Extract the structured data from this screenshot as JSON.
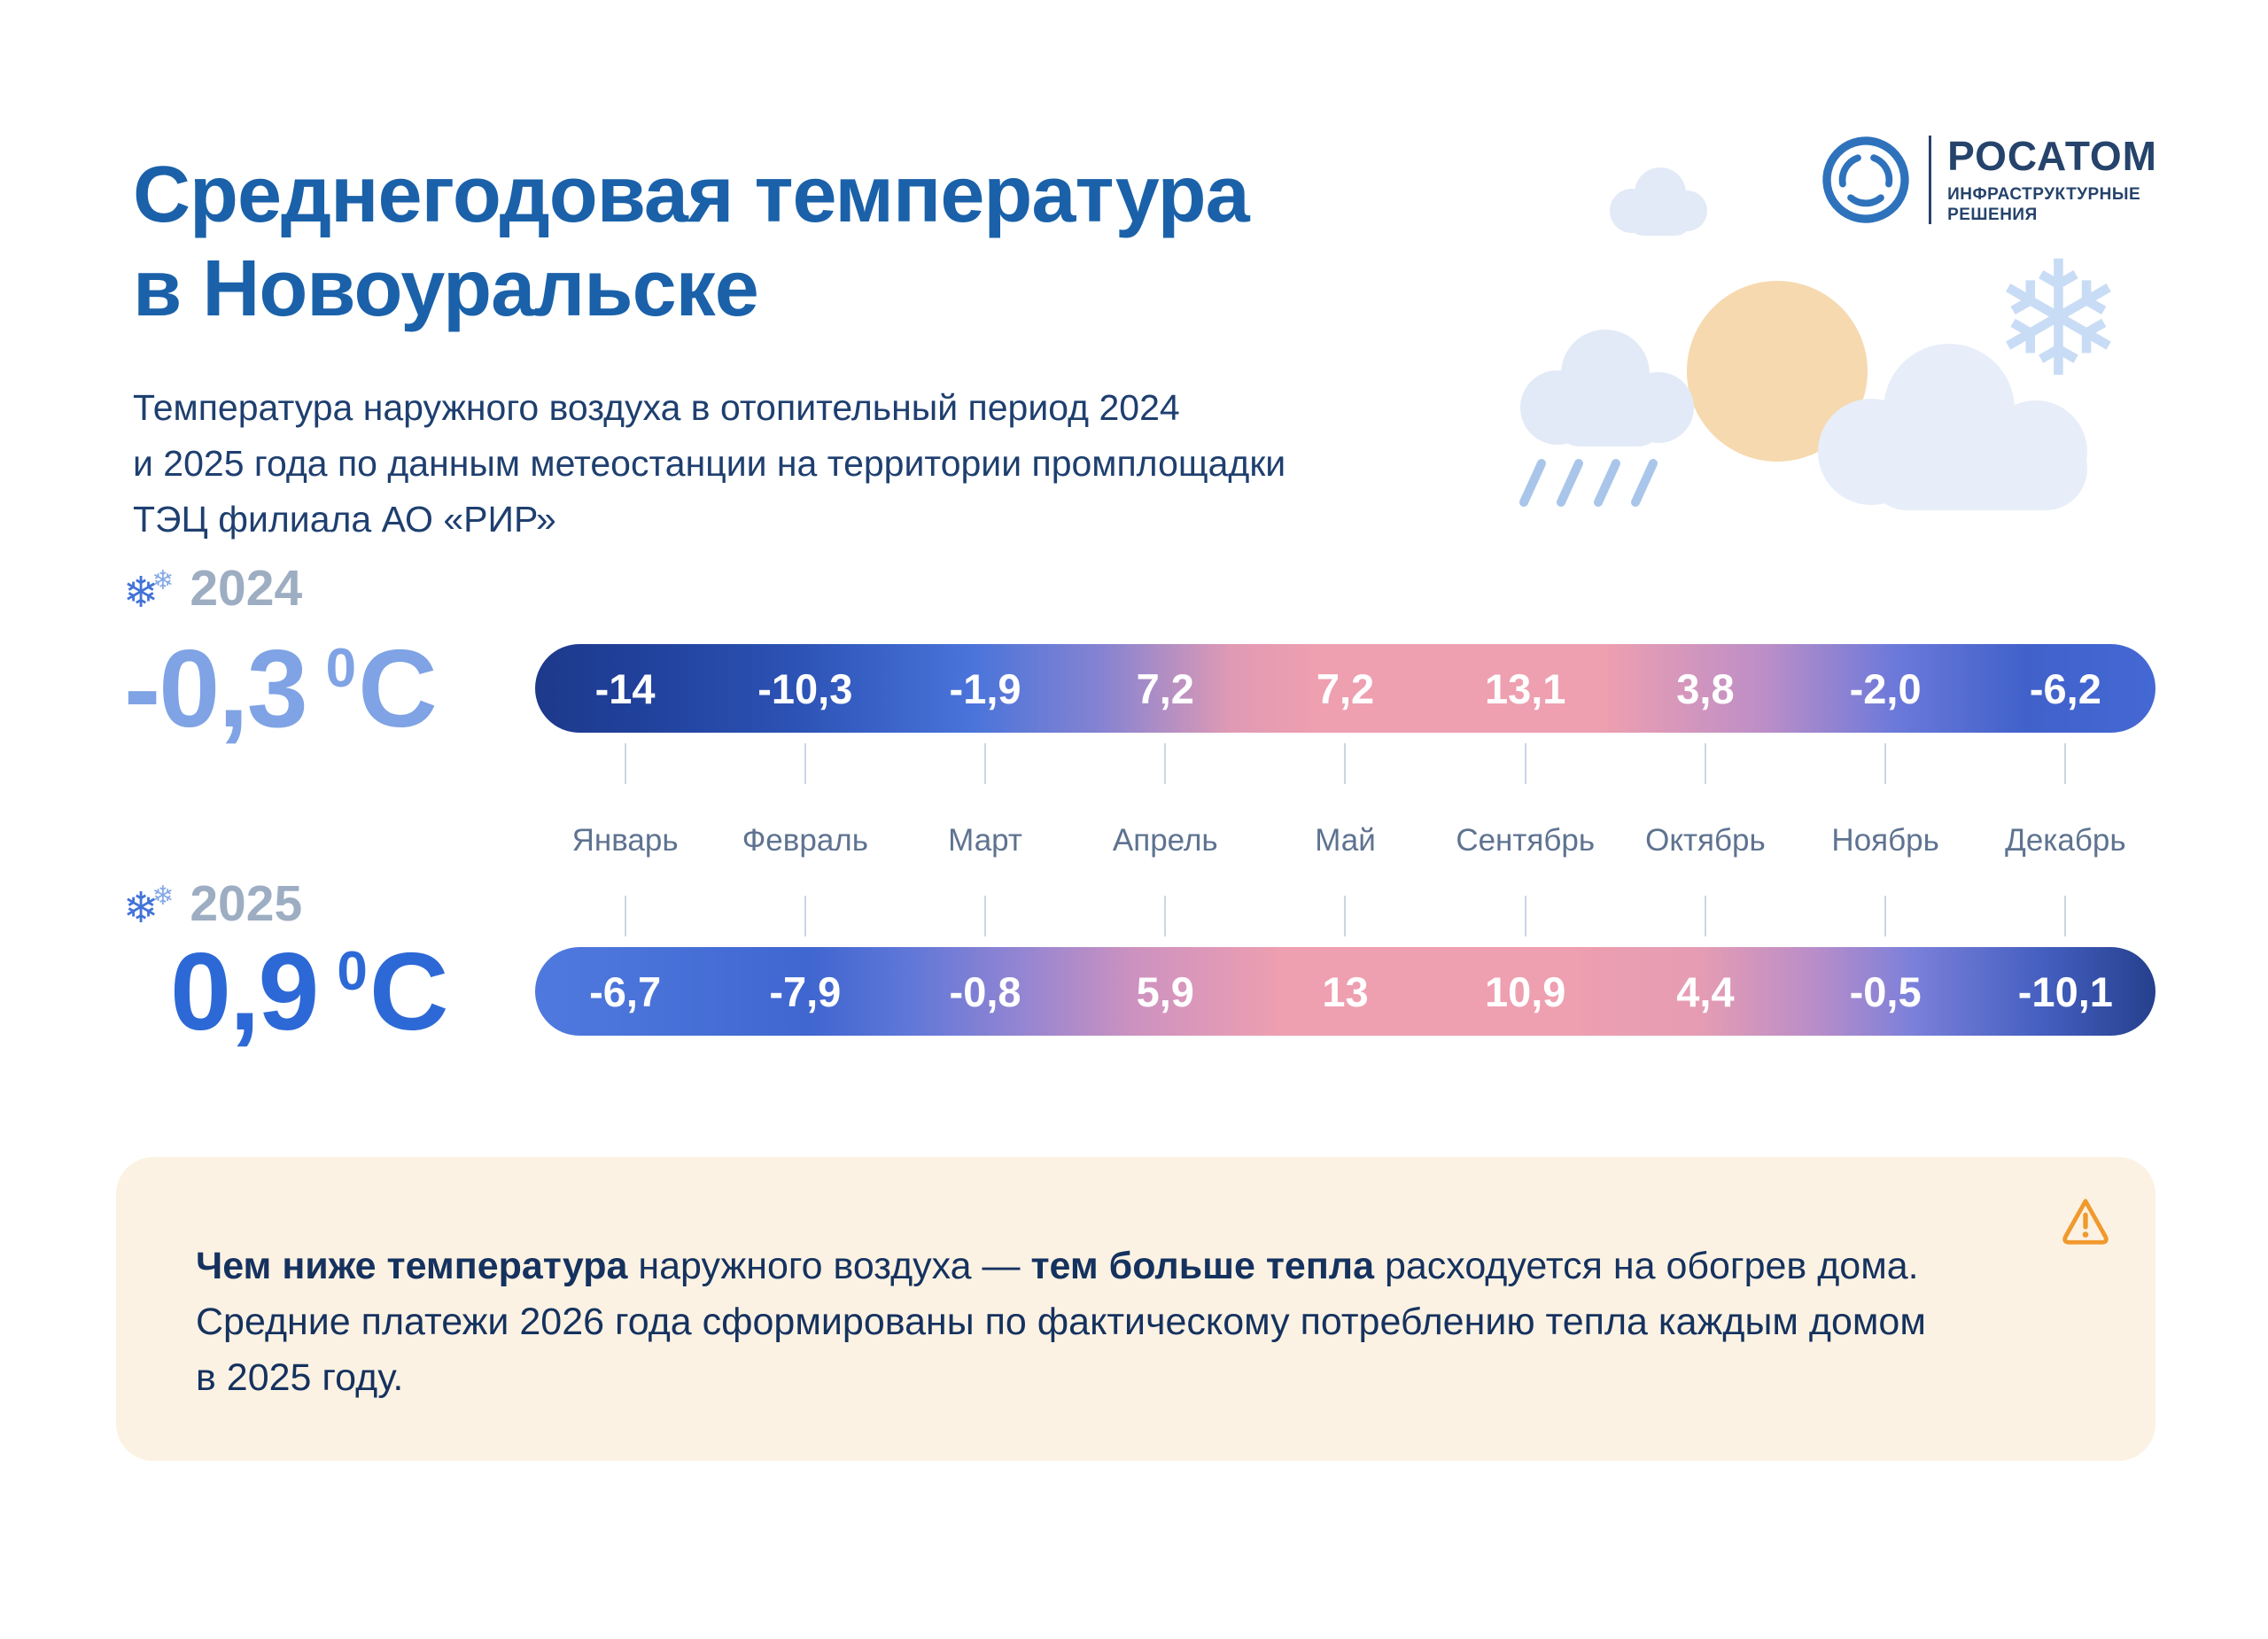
{
  "colors": {
    "title_blue": "#1A61A9",
    "body_navy": "#1E3F6F",
    "year_gray": "#9DADC2",
    "avg_2024_blue": "#7FA3E4",
    "avg_2025_blue": "#2D69D6",
    "bar_cold_navy": "#1D398B",
    "bar_warm_pink": "#EE9FB0",
    "note_bg_cream": "#FCF2E3",
    "warning_orange": "#F0992D",
    "cloud_light_blue": "#E2EAF7",
    "sun_peach": "#F6D9AF"
  },
  "header": {
    "title_lines": [
      "Среднегодовая температура",
      "в Новоуральске"
    ],
    "subtitle_lines": [
      "Температура наружного воздуха в отопительный период 2024",
      "и 2025 года по данным метеостанции на территории промплощадки",
      "ТЭЦ филиала АО «РИР»"
    ]
  },
  "logo": {
    "brand": "РОСАТОМ",
    "division_lines": [
      "ИНФРАСТРУКТУРНЫЕ",
      "РЕШЕНИЯ"
    ]
  },
  "icons": {
    "snowflake": "❄",
    "big_snowflake": "❄"
  },
  "chart_data": {
    "type": "heatmap",
    "title": "Среднегодовая температура в Новоуральске",
    "subtitle": "Температура наружного воздуха в отопительный период 2024 и 2025 года по данным метеостанции на территории промплощадки ТЭЦ филиала АО «РИР»",
    "unit": "°C",
    "color_scale": "blue = cold, pink = warm",
    "legend_position": "none",
    "categories": [
      "Январь",
      "Февраль",
      "Март",
      "Апрель",
      "Май",
      "Сентябрь",
      "Октябрь",
      "Ноябрь",
      "Декабрь"
    ],
    "series": [
      {
        "name": "2024",
        "average": -0.3,
        "average_display": "-0,3",
        "deg": "0",
        "unit_letter": "С",
        "values": [
          -14,
          -10.3,
          -1.9,
          7.2,
          7.2,
          13.1,
          3.8,
          -2.0,
          -6.2
        ],
        "values_display": [
          "-14",
          "-10,3",
          "-1,9",
          "7,2",
          "7,2",
          "13,1",
          "3,8",
          "-2,0",
          "-6,2"
        ]
      },
      {
        "name": "2025",
        "average": 0.9,
        "average_display": "0,9",
        "deg": "0",
        "unit_letter": "С",
        "values": [
          -6.7,
          -7.9,
          -0.8,
          5.9,
          13,
          10.9,
          4.4,
          -0.5,
          -10.1
        ],
        "values_display": [
          "-6,7",
          "-7,9",
          "-0,8",
          "5,9",
          "13",
          "10,9",
          "4,4",
          "-0,5",
          "-10,1"
        ]
      }
    ]
  },
  "note": {
    "lines": [
      [
        {
          "t": "Чем ниже температура",
          "b": true
        },
        {
          "t": " наружного воздуха — ",
          "b": false
        },
        {
          "t": "тем больше тепла",
          "b": true
        },
        {
          "t": " расходуется на обогрев дома.",
          "b": false
        }
      ],
      [
        {
          "t": "Средние платежи 2026 года сформированы по фактическому потреблению тепла каждым домом",
          "b": false
        }
      ],
      [
        {
          "t": "в 2025 году.",
          "b": false
        }
      ]
    ]
  }
}
